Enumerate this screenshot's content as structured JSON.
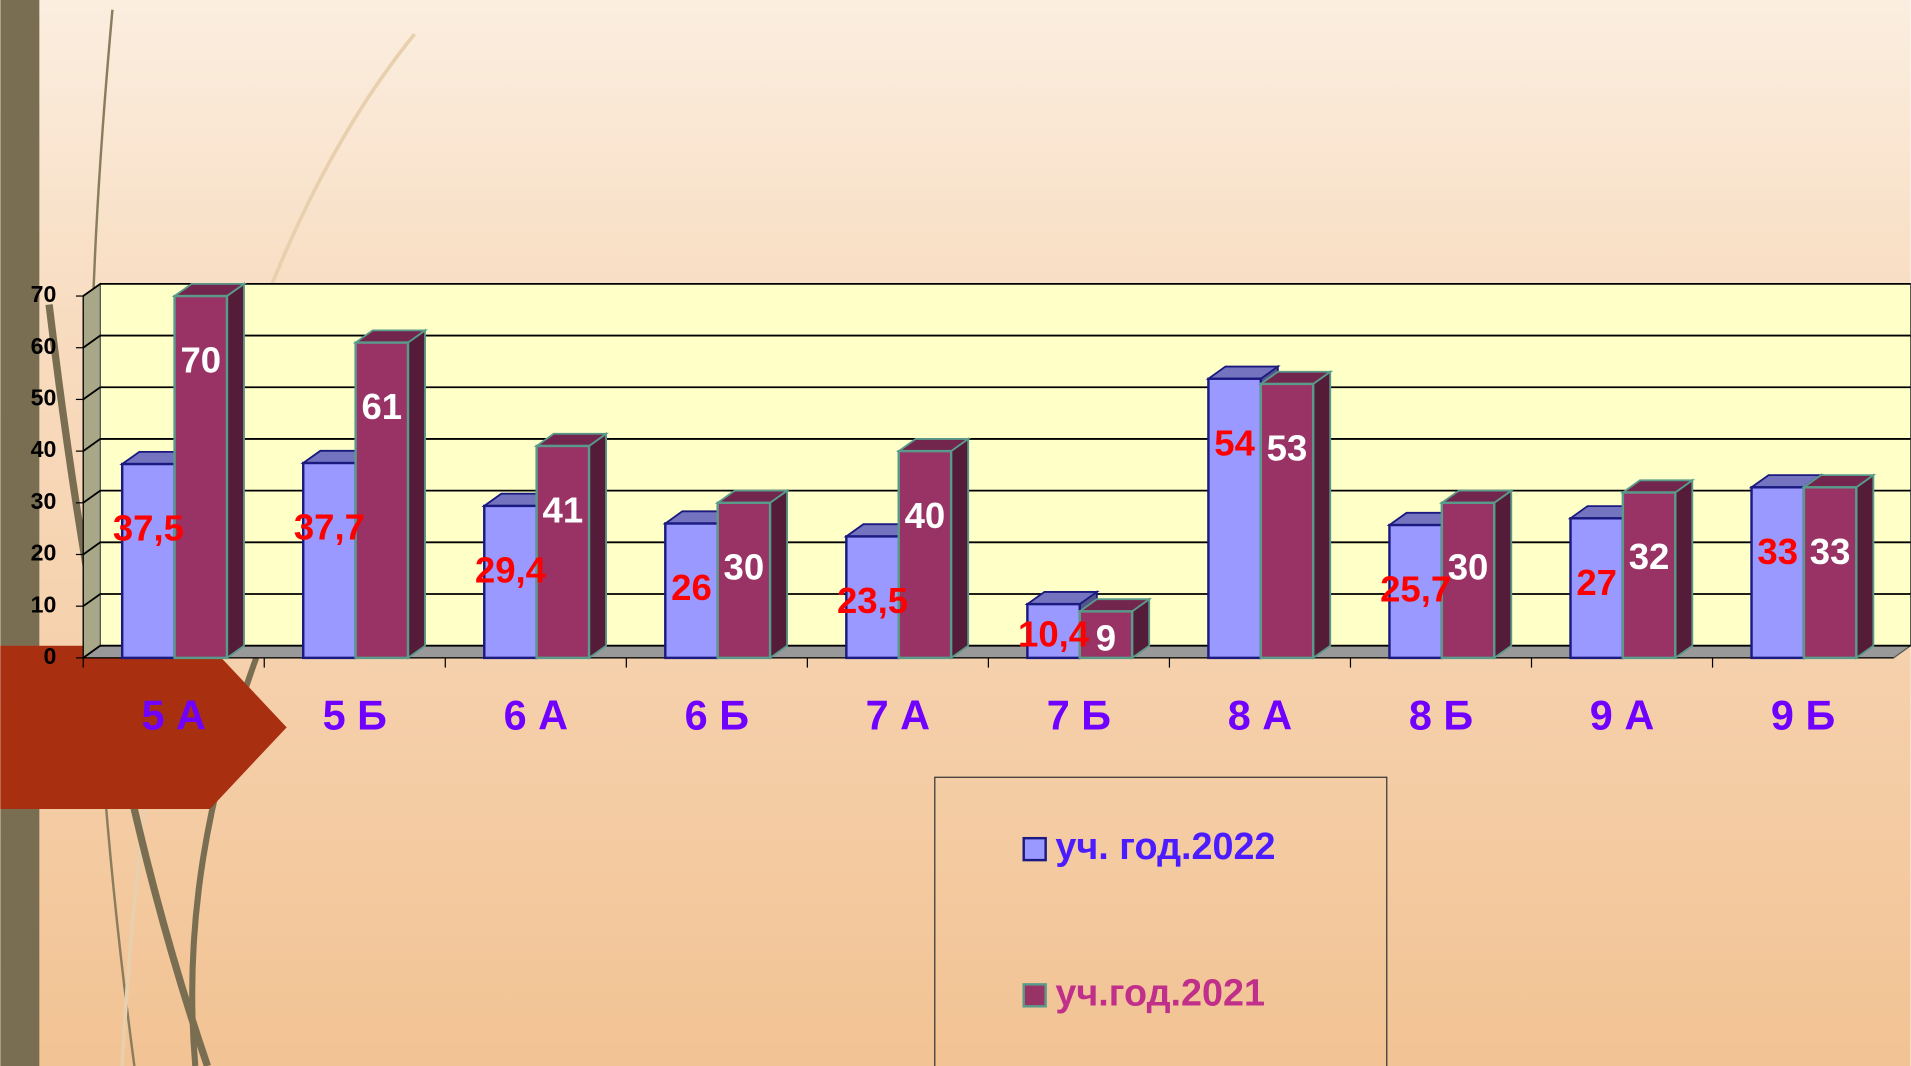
{
  "chart_data": {
    "type": "bar3d",
    "categories": [
      "5 А",
      "5 Б",
      "6 А",
      "6 Б",
      "7 А",
      "7 Б",
      "8 А",
      "8 Б",
      "9 А",
      "9 Б"
    ],
    "series": [
      {
        "name": "уч. год.2022",
        "color": "#9999ff",
        "label_color": "#ff0000",
        "values": [
          37.5,
          37.7,
          29.4,
          26,
          23.5,
          10.4,
          54,
          25.7,
          27,
          33
        ],
        "value_labels": [
          "37,5",
          "37,7",
          "29,4",
          "26",
          "23,5",
          "10,4",
          "54",
          "25,7",
          "27",
          "33"
        ]
      },
      {
        "name": "уч.год.2021",
        "color": "#993366",
        "label_color": "#ffffff",
        "values": [
          70,
          61,
          41,
          30,
          40,
          9,
          53,
          30,
          32,
          33
        ]
      }
    ],
    "ylim": [
      0,
      70
    ],
    "yticks": [
      0,
      10,
      20,
      30,
      40,
      50,
      60,
      70
    ],
    "grid": true,
    "legend": "bottom"
  }
}
